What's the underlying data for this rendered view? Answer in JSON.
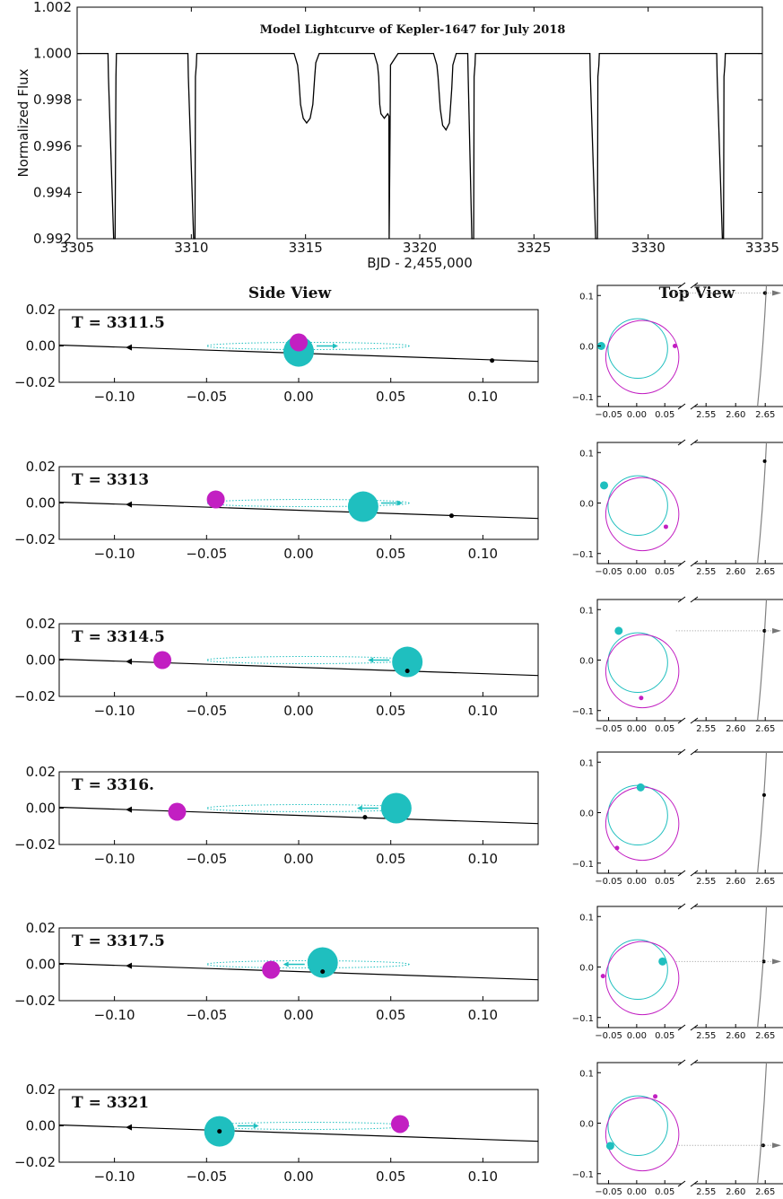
{
  "colors": {
    "cyan": "#1fbfbf",
    "magenta": "#c21fc2",
    "star_path": "#000000",
    "top_path": "#808080"
  },
  "chart_data": [
    {
      "id": "lightcurve",
      "type": "line",
      "title": "Model Lightcurve of Kepler-1647 for July 2018",
      "xlabel": "BJD - 2,455,000",
      "ylabel": "Normalized Flux",
      "xlim": [
        3305,
        3335
      ],
      "ylim": [
        0.992,
        1.002
      ],
      "xticks": [
        "3305",
        "3310",
        "3315",
        "3320",
        "3325",
        "3330",
        "3335"
      ],
      "yticks": [
        "0.992",
        "0.994",
        "0.996",
        "0.998",
        "1.000",
        "1.002"
      ],
      "x": [
        3305.0,
        3306.35,
        3306.37,
        3306.6,
        3306.65,
        3306.66,
        3306.7,
        3306.72,
        3309.85,
        3309.87,
        3310.1,
        3310.16,
        3310.18,
        3310.22,
        3310.24,
        3314.5,
        3314.65,
        3314.7,
        3314.78,
        3314.9,
        3315.05,
        3315.2,
        3315.32,
        3315.4,
        3315.45,
        3315.6,
        3318.0,
        3318.15,
        3318.2,
        3318.25,
        3318.3,
        3318.45,
        3318.6,
        3318.65,
        3318.66,
        3318.7,
        3318.72,
        3319.05,
        3319.1,
        3320.6,
        3320.75,
        3320.8,
        3320.9,
        3321.0,
        3321.15,
        3321.3,
        3321.4,
        3321.45,
        3321.6,
        3322.1,
        3322.12,
        3322.28,
        3322.36,
        3322.38,
        3322.42,
        3322.44,
        3327.45,
        3327.47,
        3327.7,
        3327.78,
        3327.8,
        3327.84,
        3327.86,
        3333.0,
        3333.02,
        3333.25,
        3333.3,
        3333.32,
        3333.36,
        3333.38,
        3335.0
      ],
      "y": [
        1.0,
        1.0,
        0.999,
        0.992,
        0.992,
        0.992,
        0.999,
        1.0,
        1.0,
        0.999,
        0.992,
        0.992,
        0.999,
        0.9995,
        1.0,
        1.0,
        0.9995,
        0.999,
        0.9978,
        0.9972,
        0.997,
        0.9972,
        0.9978,
        0.999,
        0.9996,
        1.0,
        1.0,
        0.9995,
        0.999,
        0.9978,
        0.9974,
        0.9972,
        0.9974,
        0.9973,
        0.992,
        0.9966,
        0.9995,
        1.0,
        1.0,
        1.0,
        0.9995,
        0.999,
        0.9976,
        0.9969,
        0.9967,
        0.997,
        0.9985,
        0.9995,
        1.0,
        1.0,
        0.999,
        0.992,
        0.992,
        0.999,
        0.9995,
        1.0,
        1.0,
        0.999,
        0.992,
        0.992,
        0.999,
        0.9995,
        1.0,
        1.0,
        0.999,
        0.992,
        0.992,
        0.999,
        0.9995,
        1.0,
        1.0
      ]
    },
    {
      "id": "side_view",
      "type": "scatter",
      "title": "Side View",
      "xlim": [
        -0.13,
        0.13
      ],
      "ylim": [
        -0.02,
        0.02
      ],
      "xticks": [
        "−0.10",
        "−0.05",
        "0.00",
        "0.05",
        "0.10"
      ],
      "yticks": [
        "0.02",
        "0.00",
        "−0.02"
      ],
      "panels": [
        {
          "time_label": "T =  3311.5",
          "cyan": [
            0.0,
            -0.003
          ],
          "magenta": [
            0.0,
            0.002
          ],
          "dot": [
            0.105,
            -0.008
          ],
          "draw_order": "cyan_first"
        },
        {
          "time_label": "T =  3313",
          "cyan": [
            0.035,
            -0.002
          ],
          "magenta": [
            -0.045,
            0.002
          ],
          "dot": [
            0.083,
            -0.007
          ],
          "draw_order": "magenta_first"
        },
        {
          "time_label": "T =  3314.5",
          "cyan": [
            0.059,
            -0.001
          ],
          "magenta": [
            -0.074,
            0.0
          ],
          "dot": [
            0.059,
            -0.006
          ],
          "draw_order": "magenta_first"
        },
        {
          "time_label": "T =  3316.",
          "cyan": [
            0.053,
            0.0
          ],
          "magenta": [
            -0.066,
            -0.002
          ],
          "dot": [
            0.036,
            -0.005
          ],
          "draw_order": "magenta_first"
        },
        {
          "time_label": "T =  3317.5",
          "cyan": [
            0.013,
            0.001
          ],
          "magenta": [
            -0.015,
            -0.003
          ],
          "dot": [
            0.013,
            -0.004
          ],
          "draw_order": "cyan_first"
        },
        {
          "time_label": "T =  3321",
          "cyan": [
            -0.043,
            -0.003
          ],
          "magenta": [
            0.055,
            0.001
          ],
          "dot": [
            -0.043,
            -0.003
          ],
          "draw_order": "magenta_first"
        }
      ]
    },
    {
      "id": "top_view",
      "type": "scatter",
      "title": "Top View",
      "xlim_left": [
        -0.07,
        0.08
      ],
      "xlim_right": [
        2.53,
        2.68
      ],
      "ylim": [
        -0.12,
        0.12
      ],
      "xticks_left": [
        "−0.05",
        "0.00",
        "0.05"
      ],
      "xticks_right": [
        "2.55",
        "2.60",
        "2.65"
      ],
      "yticks": [
        "0.1",
        "0.0",
        "−0.1"
      ],
      "panels": [
        {
          "cyan": [
            -0.063,
            0.0
          ],
          "magenta": [
            0.068,
            0.0
          ],
          "dot_y": 0.105,
          "arrow": true
        },
        {
          "cyan": [
            -0.058,
            0.035
          ],
          "magenta": [
            0.052,
            -0.047
          ],
          "dot_y": 0.083,
          "arrow": false
        },
        {
          "cyan": [
            -0.032,
            0.058
          ],
          "magenta": [
            0.008,
            -0.075
          ],
          "dot_y": 0.058,
          "arrow": true
        },
        {
          "cyan": [
            0.007,
            0.05
          ],
          "magenta": [
            -0.035,
            -0.07
          ],
          "dot_y": 0.035,
          "arrow": false
        },
        {
          "cyan": [
            0.046,
            0.011
          ],
          "magenta": [
            -0.06,
            -0.018
          ],
          "dot_y": 0.011,
          "arrow": true
        },
        {
          "cyan": [
            -0.047,
            -0.045
          ],
          "magenta": [
            0.033,
            0.053
          ],
          "dot_y": -0.044,
          "arrow": true
        }
      ]
    }
  ]
}
